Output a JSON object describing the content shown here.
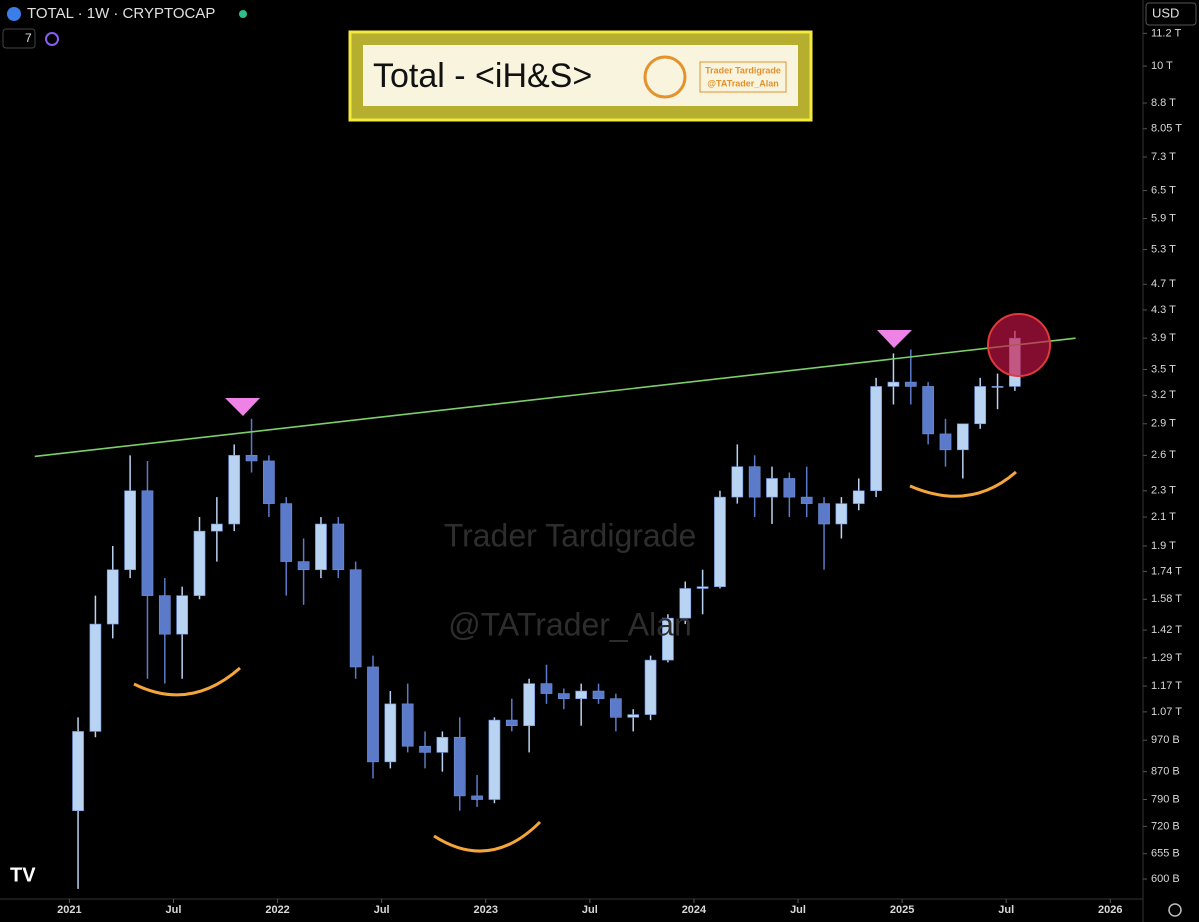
{
  "chart_data": {
    "type": "candlestick",
    "symbol": "TOTAL · 1W · CRYPTOCAP",
    "interval_count": "7",
    "currency": "USD",
    "title": "Total - <iH&S>",
    "brand_name": "Trader Tardigrade",
    "brand_handle": "@TATrader_Alan",
    "watermark_name": "Trader Tardigrade",
    "watermark_handle": "@TATrader_Alan",
    "log_scale": true,
    "up_color": "#b9d3f3",
    "down_color": "#5b7ac9",
    "x": [
      "2021-01",
      "2021-02",
      "2021-03",
      "2021-04",
      "2021-05",
      "2021-06",
      "2021-07",
      "2021-08",
      "2021-09",
      "2021-10",
      "2021-11",
      "2021-12",
      "2022-01",
      "2022-02",
      "2022-03",
      "2022-04",
      "2022-05",
      "2022-06",
      "2022-07",
      "2022-08",
      "2022-09",
      "2022-10",
      "2022-11",
      "2022-12",
      "2023-01",
      "2023-02",
      "2023-03",
      "2023-04",
      "2023-05",
      "2023-06",
      "2023-07",
      "2023-08",
      "2023-09",
      "2023-10",
      "2023-11",
      "2023-12",
      "2024-01",
      "2024-02",
      "2024-03",
      "2024-04",
      "2024-05",
      "2024-06",
      "2024-07",
      "2024-08",
      "2024-09",
      "2024-10",
      "2024-11",
      "2024-12",
      "2025-01",
      "2025-02",
      "2025-03",
      "2025-04",
      "2025-05",
      "2025-06",
      "2025-07"
    ],
    "open": [
      760,
      1000,
      1450,
      1750,
      2300,
      1600,
      1400,
      1600,
      2000,
      2050,
      2600,
      2550,
      2200,
      1800,
      1750,
      2050,
      1750,
      1250,
      900,
      1100,
      950,
      930,
      980,
      800,
      790,
      1040,
      1020,
      1180,
      1140,
      1120,
      1150,
      1120,
      1050,
      1060,
      1280,
      1480,
      1640,
      1650,
      2250,
      2500,
      2250,
      2400,
      2250,
      2200,
      2050,
      2200,
      2300,
      3300,
      3350,
      3300,
      2800,
      2650,
      2900,
      3300,
      3300
    ],
    "high": [
      1050,
      1600,
      1900,
      2600,
      2550,
      1700,
      1650,
      2100,
      2250,
      2700,
      2950,
      2600,
      2250,
      1950,
      2100,
      2100,
      1800,
      1300,
      1150,
      1180,
      1000,
      1000,
      1050,
      860,
      1050,
      1120,
      1200,
      1260,
      1160,
      1180,
      1180,
      1140,
      1080,
      1300,
      1500,
      1680,
      1750,
      2300,
      2700,
      2600,
      2500,
      2450,
      2500,
      2250,
      2250,
      2400,
      3400,
      3700,
      3750,
      3350,
      2950,
      2900,
      3400,
      3450,
      4000
    ],
    "low": [
      580,
      980,
      1380,
      1700,
      1200,
      1180,
      1200,
      1580,
      1800,
      2000,
      2450,
      2100,
      1600,
      1550,
      1700,
      1700,
      1200,
      850,
      880,
      930,
      880,
      870,
      760,
      770,
      780,
      1000,
      930,
      1100,
      1080,
      1020,
      1100,
      1000,
      1000,
      1040,
      1270,
      1450,
      1500,
      1640,
      2200,
      2100,
      2050,
      2100,
      2100,
      1750,
      1950,
      2150,
      2250,
      3100,
      3100,
      2700,
      2500,
      2400,
      2850,
      3050,
      3250
    ],
    "close": [
      1000,
      1450,
      1750,
      2300,
      1600,
      1400,
      1600,
      2000,
      2050,
      2600,
      2550,
      2200,
      1800,
      1750,
      2050,
      1750,
      1250,
      900,
      1100,
      950,
      930,
      980,
      800,
      790,
      1040,
      1020,
      1180,
      1140,
      1120,
      1150,
      1120,
      1050,
      1060,
      1280,
      1480,
      1640,
      1650,
      2250,
      2500,
      2250,
      2400,
      2250,
      2200,
      2050,
      2200,
      2300,
      3300,
      3350,
      3300,
      2800,
      2650,
      2900,
      3300,
      3300,
      3900
    ],
    "trendline": {
      "x": [
        "2020-11",
        "2025-11"
      ],
      "values": [
        2590,
        3900
      ],
      "color": "#7ccf6a"
    },
    "xlim": [
      "2020-09",
      "2026-03"
    ],
    "xticks": [
      {
        "value": "2021-01",
        "label": "2021"
      },
      {
        "value": "2021-07",
        "label": "Jul"
      },
      {
        "value": "2022-01",
        "label": "2022"
      },
      {
        "value": "2022-07",
        "label": "Jul"
      },
      {
        "value": "2023-01",
        "label": "2023"
      },
      {
        "value": "2023-07",
        "label": "Jul"
      },
      {
        "value": "2024-01",
        "label": "2024"
      },
      {
        "value": "2024-07",
        "label": "Jul"
      },
      {
        "value": "2025-01",
        "label": "2025"
      },
      {
        "value": "2025-07",
        "label": "Jul"
      },
      {
        "value": "2026-01",
        "label": "2026"
      }
    ],
    "ylim": [
      558,
      12570
    ],
    "yticks": [
      {
        "value": 11200,
        "label": "11.2 T"
      },
      {
        "value": 10000,
        "label": "10 T"
      },
      {
        "value": 8800,
        "label": "8.8 T"
      },
      {
        "value": 8050,
        "label": "8.05 T"
      },
      {
        "value": 7300,
        "label": "7.3 T"
      },
      {
        "value": 6500,
        "label": "6.5 T"
      },
      {
        "value": 5900,
        "label": "5.9 T"
      },
      {
        "value": 5300,
        "label": "5.3 T"
      },
      {
        "value": 4700,
        "label": "4.7 T"
      },
      {
        "value": 4300,
        "label": "4.3 T"
      },
      {
        "value": 3900,
        "label": "3.9 T"
      },
      {
        "value": 3500,
        "label": "3.5 T"
      },
      {
        "value": 3200,
        "label": "3.2 T"
      },
      {
        "value": 2900,
        "label": "2.9 T"
      },
      {
        "value": 2600,
        "label": "2.6 T"
      },
      {
        "value": 2300,
        "label": "2.3 T"
      },
      {
        "value": 2100,
        "label": "2.1 T"
      },
      {
        "value": 1900,
        "label": "1.9 T"
      },
      {
        "value": 1740,
        "label": "1.74 T"
      },
      {
        "value": 1580,
        "label": "1.58 T"
      },
      {
        "value": 1420,
        "label": "1.42 T"
      },
      {
        "value": 1290,
        "label": "1.29 T"
      },
      {
        "value": 1170,
        "label": "1.17 T"
      },
      {
        "value": 1070,
        "label": "1.07 T"
      },
      {
        "value": 970,
        "label": "970 B"
      },
      {
        "value": 870,
        "label": "870 B"
      },
      {
        "value": 790,
        "label": "790 B"
      },
      {
        "value": 720,
        "label": "720 B"
      },
      {
        "value": 655,
        "label": "655 B"
      },
      {
        "value": 600,
        "label": "600 B"
      }
    ]
  }
}
